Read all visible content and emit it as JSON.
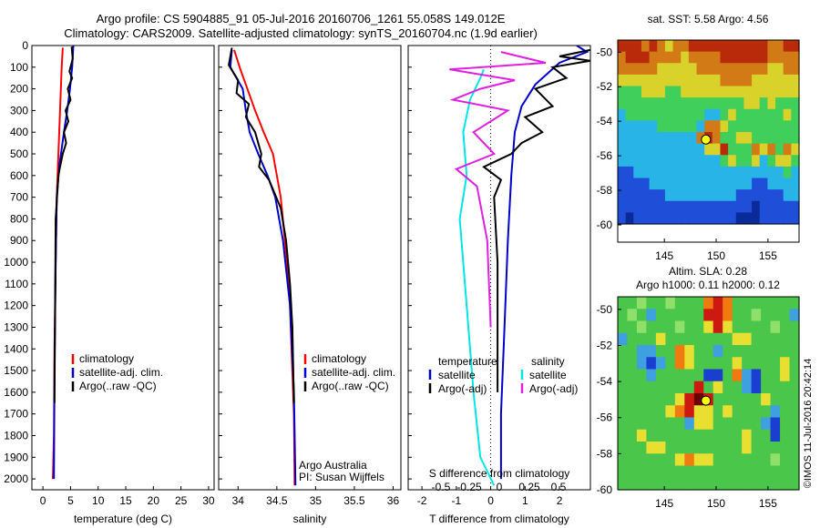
{
  "title_lines": [
    "Argo profile: CS 5904885_91 05-Jul-2016 20160706_1261 55.058S 149.012E",
    "Climatology: CARS2009. Satellite-adjusted climatology: synTS_20160704.nc (1.9d earlier)"
  ],
  "watermark": "©IMOS 11-Jul-2016 20:42:14",
  "colors": {
    "climatology": "#ff0000",
    "satellite": "#0000cc",
    "argo": "#000000",
    "satellite_salinity": "#00e5e5",
    "argo_salinity_diff": "#e020e0",
    "marker": "#ffff00"
  },
  "chart_data": [
    {
      "type": "line",
      "name": "temperature-profile",
      "xlabel": "temperature (deg C)",
      "ylabel": "",
      "xlim": [
        -2,
        31
      ],
      "ylim": [
        2050,
        0
      ],
      "xticks": [
        0,
        5,
        10,
        15,
        20,
        25,
        30
      ],
      "yticks": [
        0,
        100,
        200,
        300,
        400,
        500,
        600,
        700,
        800,
        900,
        1000,
        1100,
        1200,
        1300,
        1400,
        1500,
        1600,
        1700,
        1800,
        1900,
        2000
      ],
      "legend": {
        "placement": "lower-middle",
        "entries": [
          "climatology",
          "satellite-adj. clim.",
          "Argo(..raw -QC)"
        ]
      },
      "series": [
        {
          "name": "climatology",
          "color": "#ff0000",
          "x": [
            3.6,
            3.4,
            3.1,
            2.8,
            2.5,
            2.3,
            2.1,
            2.0,
            1.8
          ],
          "y": [
            10,
            100,
            300,
            500,
            700,
            1000,
            1400,
            1800,
            2000
          ]
        },
        {
          "name": "satellite-adj. clim.",
          "color": "#0000cc",
          "x": [
            5.5,
            5.3,
            4.9,
            4.4,
            3.8,
            3.0,
            2.5,
            2.3,
            2.1,
            2.0
          ],
          "y": [
            0,
            100,
            200,
            300,
            400,
            550,
            700,
            1000,
            1500,
            2000
          ]
        },
        {
          "name": "Argo(..raw -QC)",
          "color": "#000000",
          "x": [
            5.2,
            5.4,
            4.8,
            5.3,
            4.5,
            5.0,
            4.1,
            4.6,
            3.8,
            4.2,
            3.6,
            3.1,
            2.8,
            2.3,
            2.2,
            2.1
          ],
          "y": [
            5,
            60,
            120,
            150,
            200,
            250,
            300,
            350,
            400,
            450,
            500,
            560,
            600,
            800,
            1200,
            1650
          ]
        }
      ]
    },
    {
      "type": "line",
      "name": "salinity-profile",
      "xlabel": "salinity",
      "ylabel": "",
      "xlim": [
        33.75,
        36.1
      ],
      "ylim": [
        2050,
        0
      ],
      "xticks": [
        34,
        34.5,
        35,
        35.5,
        36
      ],
      "legend": {
        "placement": "lower-middle",
        "entries": [
          "climatology",
          "satellite-adj. clim.",
          "Argo(..raw -QC)"
        ]
      },
      "annotations": [
        "Argo Australia",
        "PI: Susan Wijffels"
      ],
      "series": [
        {
          "name": "climatology",
          "color": "#ff0000",
          "x": [
            33.95,
            34.02,
            34.12,
            34.22,
            34.33,
            34.45,
            34.55,
            34.66,
            34.72,
            34.73
          ],
          "y": [
            20,
            100,
            200,
            300,
            400,
            500,
            700,
            1100,
            1700,
            2030
          ]
        },
        {
          "name": "satellite-adj. clim.",
          "color": "#0000cc",
          "x": [
            33.92,
            33.9,
            34.06,
            34.1,
            34.15,
            34.26,
            34.38,
            34.48,
            34.58,
            34.67,
            34.72,
            34.74
          ],
          "y": [
            20,
            100,
            200,
            300,
            400,
            500,
            600,
            700,
            900,
            1200,
            1600,
            2030
          ]
        },
        {
          "name": "Argo(..raw -QC)",
          "color": "#000000",
          "x": [
            33.92,
            33.88,
            34.0,
            33.98,
            34.14,
            34.1,
            34.22,
            34.3,
            34.27,
            34.4,
            34.55,
            34.62,
            34.67,
            34.7,
            34.72
          ],
          "y": [
            10,
            90,
            160,
            220,
            270,
            330,
            400,
            500,
            560,
            620,
            750,
            900,
            1100,
            1300,
            1650
          ]
        }
      ]
    },
    {
      "type": "line",
      "name": "difference-profile",
      "xlabel": "T difference from climatology",
      "top_axis_label": "S difference from climatology",
      "xlim": [
        -2.4,
        2.9
      ],
      "ylim": [
        2050,
        0
      ],
      "xticks": [
        -2,
        -1,
        0,
        1,
        2
      ],
      "top_xticks": [
        "-0.5",
        "-0.25",
        "0",
        "0.25",
        "0.5"
      ],
      "legend": {
        "placement": "lower-middle",
        "groups": [
          {
            "heading": "temperature",
            "entries": [
              "satellite",
              "Argo(-adj)"
            ]
          },
          {
            "heading": "salinity",
            "entries": [
              "satellite",
              "Argo(-adj)"
            ]
          }
        ]
      },
      "series": [
        {
          "name": "temperature satellite",
          "color": "#0000cc",
          "x": [
            2.5,
            2.8,
            2.0,
            1.3,
            0.9,
            0.7,
            0.6,
            0.5,
            0.4,
            0.3,
            0.3
          ],
          "y": [
            0,
            30,
            80,
            180,
            280,
            400,
            600,
            900,
            1300,
            1700,
            2000
          ]
        },
        {
          "name": "temperature Argo(-adj)",
          "color": "#000000",
          "x": [
            2.9,
            2.0,
            2.9,
            1.8,
            2.2,
            1.3,
            1.8,
            1.0,
            1.5,
            0.9,
            0.6,
            -0.2,
            0.3,
            0.1,
            0.2,
            0.2
          ],
          "y": [
            20,
            50,
            70,
            100,
            150,
            200,
            280,
            330,
            400,
            450,
            500,
            560,
            620,
            700,
            1000,
            1600
          ]
        },
        {
          "name": "salinity satellite",
          "color": "#00e5e5",
          "x": [
            -0.2,
            -0.3,
            -0.6,
            -0.8,
            -0.7,
            -0.9,
            -0.7,
            -0.5,
            -0.3,
            0.1
          ],
          "y": [
            110,
            150,
            250,
            400,
            600,
            800,
            1200,
            1600,
            1900,
            2030
          ]
        },
        {
          "name": "salinity Argo(-adj)",
          "color": "#e020e0",
          "x": [
            0.3,
            1.6,
            -1.2,
            0.7,
            -0.3,
            -1.1,
            0.5,
            -0.5,
            0.1,
            -1.0,
            -0.4,
            -0.1,
            0.0
          ],
          "y": [
            30,
            80,
            110,
            160,
            200,
            250,
            300,
            400,
            500,
            570,
            650,
            900,
            1300
          ]
        }
      ]
    },
    {
      "type": "heatmap",
      "name": "sst-map",
      "title": "sat. SST: 5.58 Argo: 4.56",
      "xlim": [
        140.5,
        158
      ],
      "ylim": [
        -61,
        -49.3
      ],
      "xticks": [
        145,
        150,
        155
      ],
      "yticks": [
        -50,
        -52,
        -54,
        -56,
        -58,
        -60
      ],
      "marker": {
        "lon": 149.012,
        "lat": -55.058
      },
      "rows_north_to_south": [
        "rrroroyoorrrrrrrrrroorr",
        "orrrooooyoooorrrrrroooo",
        "oooooyyyyyoooooooooyyoo",
        "yyyyyyyyyyyyyooooyyyyyy",
        "gggyyyggyyyyyyyyyyyyyyy",
        "ggggggggggggggggyygyggg",
        "cggggggggggccgyggggggyg",
        "cccccgggggcooyggggggggg",
        "ccccccccccoroggyygggggg",
        "cccccccccccyyrgggoyogoy",
        "cccccccccccccgyggycgyyg",
        "bbcccccccccccccccccccgc",
        "bbbbcccccccccccccbbcccc",
        "bbbbbbcccccccccbbbbbbcc",
        "bbbbbbbbbbbbbbbbbnbbbbb",
        "bnbbbbbbbbbbbbbnnnbbbbb"
      ],
      "palette": {
        "n": "#0a2a9a",
        "b": "#1f4fd8",
        "c": "#29b4e8",
        "g": "#3fcf5a",
        "y": "#d8d22a",
        "o": "#d27a16",
        "r": "#b82a0a"
      }
    },
    {
      "type": "heatmap",
      "name": "sla-map",
      "title_lines": [
        "Altim. SLA: 0.28",
        "Argo h1000: 0.11 h2000: 0.12"
      ],
      "xlim": [
        140.5,
        158
      ],
      "ylim": [
        -60,
        -49.3
      ],
      "xticks": [
        145,
        150,
        155
      ],
      "yticks": [
        -50,
        -52,
        -54,
        -56,
        -58,
        -60
      ],
      "marker": {
        "lon": 149.012,
        "lat": -55.058
      },
      "rows_north_to_south": [
        "gglgglgggoroggggggg",
        "glgcgggggrrogglgggc",
        "gglggglggyrygggglgg",
        "cgggygggggggyyggggg",
        "ggccggoyggcgggggggg",
        "ggcbcgoyggggyggggyg",
        "gggcgggggbbgocbggyg",
        "ggggggggrgyggcbgggg",
        "ggggggyrnrgggggyggg",
        "gggggyoryygyggggcgg",
        "gggggggcyygggggcbgg",
        "ggyggggggggggyggbgg",
        "gggyyggggggggyggggg",
        "ggggggyoyygggggglgg",
        "ggggggggggggggggggg",
        "ggggggggggggggggggg"
      ],
      "palette": {
        "n": "#6a0000",
        "r": "#cc1a10",
        "o": "#f07a10",
        "y": "#e8df30",
        "g": "#4ac64a",
        "l": "#8ee06a",
        "c": "#3fa0e0",
        "b": "#1a3fd0"
      }
    }
  ]
}
